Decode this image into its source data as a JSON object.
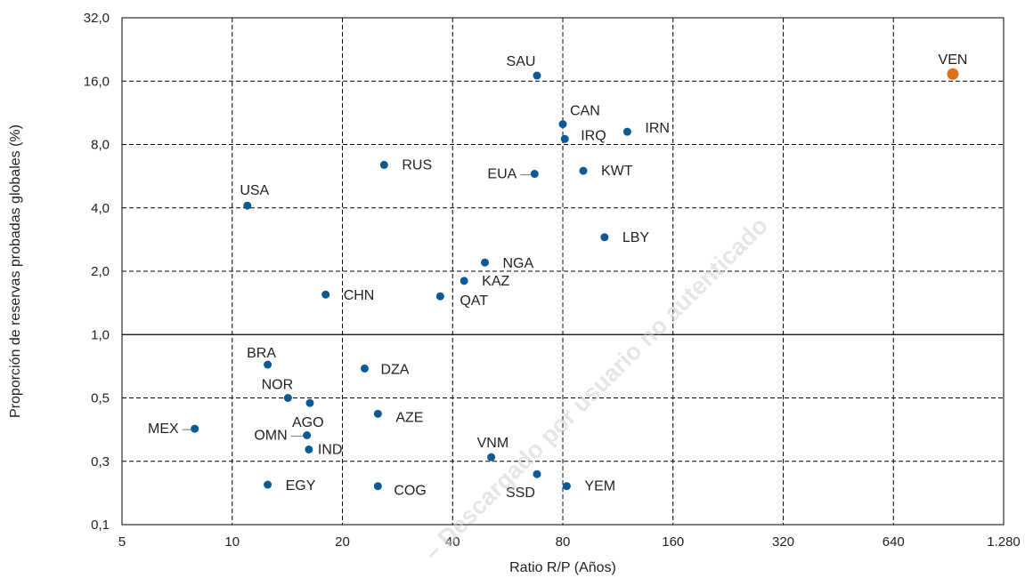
{
  "chart_data": {
    "type": "scatter",
    "xlabel": "Ratio R/P (Años)",
    "ylabel": "Proporción de reservas probadas globales (%)",
    "x_scale": "log2",
    "y_scale": "log",
    "xlim": [
      5,
      1280
    ],
    "x_ticks": [
      5,
      10,
      20,
      40,
      80,
      160,
      320,
      640,
      1280
    ],
    "x_tick_labels": [
      "5",
      "10",
      "20",
      "40",
      "80",
      "160",
      "320",
      "640",
      "1.280"
    ],
    "y_ticks": [
      0.1,
      0.3,
      0.5,
      1.0,
      2.0,
      4.0,
      8.0,
      16.0,
      32.0
    ],
    "y_tick_labels": [
      "0,1",
      "0,3",
      "0,5",
      "1,0",
      "2,0",
      "4,0",
      "8,0",
      "16,0",
      "32,0"
    ],
    "grid": true,
    "colors": {
      "default": "#0b5a93",
      "highlight": "#d9731a"
    },
    "points": [
      {
        "label": "SAU",
        "x": 68,
        "y": 17.0
      },
      {
        "label": "VEN",
        "x": 930,
        "y": 17.3,
        "highlight": true
      },
      {
        "label": "CAN",
        "x": 80,
        "y": 10.0
      },
      {
        "label": "IRQ",
        "x": 81,
        "y": 8.5
      },
      {
        "label": "IRN",
        "x": 120,
        "y": 9.2
      },
      {
        "label": "RUS",
        "x": 26,
        "y": 6.4
      },
      {
        "label": "EUA",
        "x": 67,
        "y": 5.8
      },
      {
        "label": "KWT",
        "x": 91,
        "y": 6.0
      },
      {
        "label": "USA",
        "x": 11,
        "y": 4.1
      },
      {
        "label": "LBY",
        "x": 104,
        "y": 2.9
      },
      {
        "label": "NGA",
        "x": 49,
        "y": 2.2
      },
      {
        "label": "KAZ",
        "x": 43,
        "y": 1.8
      },
      {
        "label": "CHN",
        "x": 18,
        "y": 1.55
      },
      {
        "label": "QAT",
        "x": 37,
        "y": 1.52
      },
      {
        "label": "BRA",
        "x": 12.5,
        "y": 0.72
      },
      {
        "label": "DZA",
        "x": 23,
        "y": 0.69
      },
      {
        "label": "NOR",
        "x": 14.2,
        "y": 0.5
      },
      {
        "label": "AGO",
        "x": 16.3,
        "y": 0.48
      },
      {
        "label": "AZE",
        "x": 25,
        "y": 0.44
      },
      {
        "label": "MEX",
        "x": 7.9,
        "y": 0.39
      },
      {
        "label": "OMN",
        "x": 16.0,
        "y": 0.37
      },
      {
        "label": "IND",
        "x": 16.2,
        "y": 0.33
      },
      {
        "label": "VNM",
        "x": 51,
        "y": 0.31
      },
      {
        "label": "SSD",
        "x": 68,
        "y": 0.24
      },
      {
        "label": "EGY",
        "x": 12.5,
        "y": 0.2
      },
      {
        "label": "COG",
        "x": 25,
        "y": 0.195
      },
      {
        "label": "YEM",
        "x": 82,
        "y": 0.195
      }
    ]
  },
  "watermark": "– Descargado por usuario no autenticado"
}
